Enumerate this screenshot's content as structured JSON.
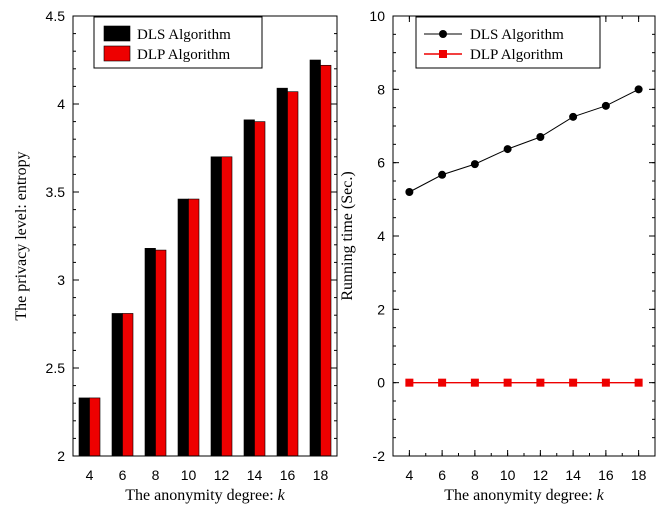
{
  "chart_data": [
    {
      "type": "bar",
      "categories": [
        "4",
        "6",
        "8",
        "10",
        "12",
        "14",
        "16",
        "18"
      ],
      "series": [
        {
          "name": "DLS Algorithm",
          "values": [
            2.33,
            2.81,
            3.18,
            3.46,
            3.7,
            3.91,
            4.09,
            4.25
          ]
        },
        {
          "name": "DLP Algorithm",
          "values": [
            2.33,
            2.81,
            3.17,
            3.46,
            3.7,
            3.9,
            4.07,
            4.22
          ]
        }
      ],
      "ylim": [
        2,
        4.5
      ],
      "yticks": [
        "2",
        "2.5",
        "3",
        "3.5",
        "4",
        "4.5"
      ],
      "xlabel_main": "The anonymity degree: ",
      "xlabel_var": "k",
      "ylabel": "The privacy level: entropy",
      "legend_position": "top-left",
      "colors": {
        "DLS Algorithm": "#000000",
        "DLP Algorithm": "#ee0000"
      }
    },
    {
      "type": "line",
      "x": [
        4,
        6,
        8,
        10,
        12,
        14,
        16,
        18
      ],
      "series": [
        {
          "name": "DLS Algorithm",
          "values": [
            5.2,
            5.67,
            5.96,
            6.37,
            6.7,
            7.25,
            7.55,
            8.0
          ],
          "marker": "circle",
          "color": "#000000"
        },
        {
          "name": "DLP Algorithm",
          "values": [
            0.0,
            0.0,
            0.0,
            0.0,
            0.0,
            0.0,
            0.0,
            0.0
          ],
          "marker": "square",
          "color": "#ee0000"
        }
      ],
      "xticks": [
        "4",
        "6",
        "8",
        "10",
        "12",
        "14",
        "16",
        "18"
      ],
      "xlim": [
        3,
        19
      ],
      "ylim": [
        -2,
        10
      ],
      "yticks": [
        "-2",
        "0",
        "2",
        "4",
        "6",
        "8",
        "10"
      ],
      "xlabel_main": "The anonymity degree: ",
      "xlabel_var": "k",
      "ylabel": "Running time (Sec.)",
      "legend_position": "top-center"
    }
  ]
}
